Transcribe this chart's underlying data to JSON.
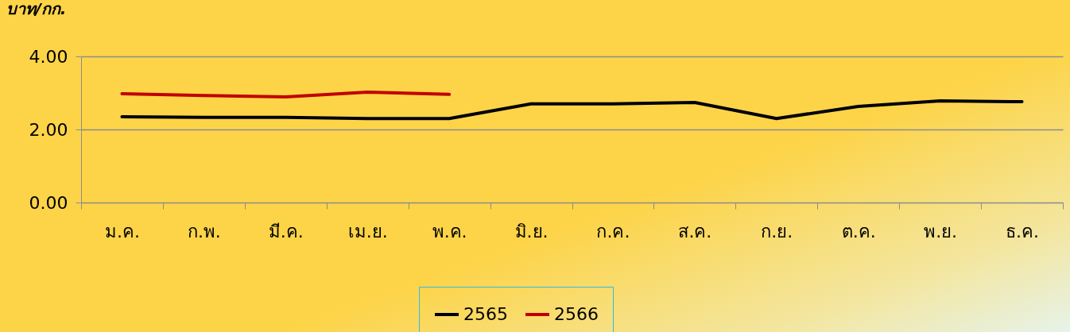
{
  "chart_data": {
    "type": "line",
    "ylabel": "บาท/กก.",
    "categories": [
      "ม.ค.",
      "ก.พ.",
      "มี.ค.",
      "เม.ย.",
      "พ.ค.",
      "มิ.ย.",
      "ก.ค.",
      "ส.ค.",
      "ก.ย.",
      "ต.ค.",
      "พ.ย.",
      "ธ.ค."
    ],
    "series": [
      {
        "name": "2565",
        "color": "#000000",
        "values": [
          2.35,
          2.33,
          2.33,
          2.3,
          2.3,
          2.7,
          2.7,
          2.74,
          2.3,
          2.63,
          2.78,
          2.76
        ]
      },
      {
        "name": "2566",
        "color": "#c00000",
        "values": [
          2.98,
          2.93,
          2.89,
          3.02,
          2.96,
          null,
          null,
          null,
          null,
          null,
          null,
          null
        ]
      }
    ],
    "ylim": [
      0,
      4
    ],
    "yticks": [
      {
        "value": 0,
        "label": "0.00"
      },
      {
        "value": 2,
        "label": "2.00"
      },
      {
        "value": 4,
        "label": "4.00"
      }
    ],
    "grid": "y",
    "legend": "bottom",
    "marker": "none",
    "line_style": "solid"
  }
}
